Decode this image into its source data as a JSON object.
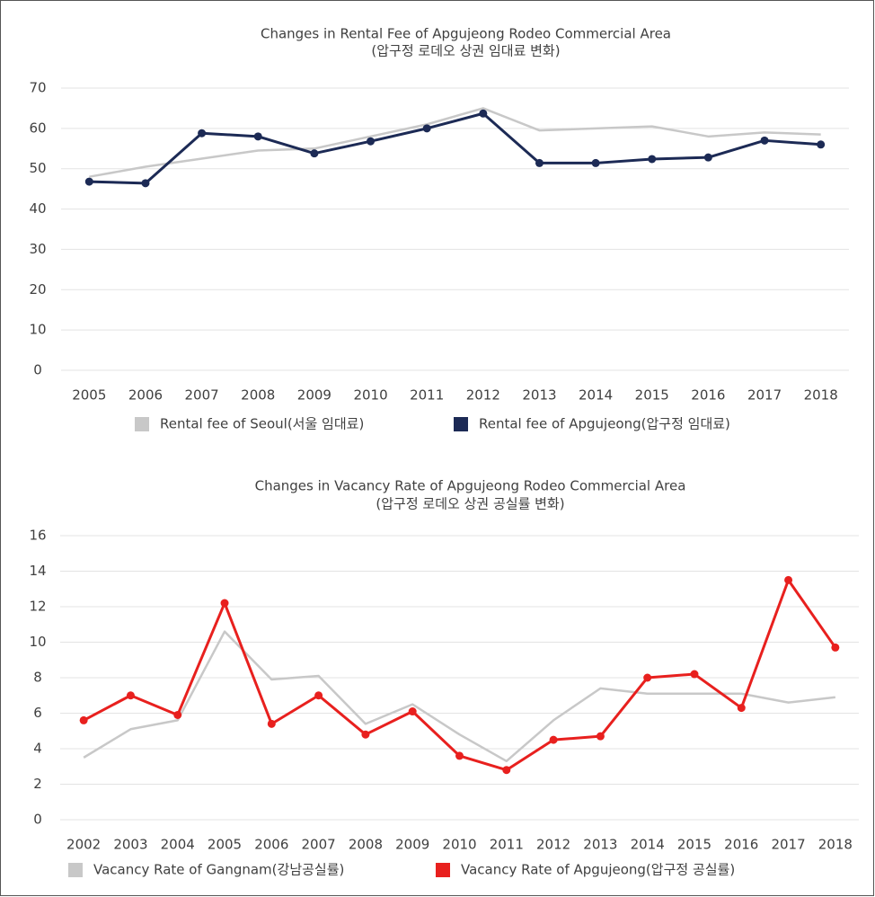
{
  "chart_data": [
    {
      "type": "line",
      "title": "Changes in Rental Fee of Apgujeong Rodeo Commercial Area",
      "subtitle": "(압구정 로데오 상권 임대료 변화)",
      "categories": [
        "2005",
        "2006",
        "2007",
        "2008",
        "2009",
        "2010",
        "2011",
        "2012",
        "2013",
        "2014",
        "2015",
        "2016",
        "2017",
        "2018"
      ],
      "series": [
        {
          "name": "Rental fee of Seoul(서울 임대료)",
          "color": "#c8c8c8",
          "markers": false,
          "values": [
            48,
            50.5,
            52.5,
            54.5,
            55,
            58,
            61,
            65,
            59.5,
            60,
            60.5,
            58,
            59,
            58.5
          ]
        },
        {
          "name": "Rental fee of Apgujeong(압구정 임대료)",
          "color": "#1c2a55",
          "markers": true,
          "values": [
            46.8,
            46.4,
            58.8,
            58,
            53.8,
            56.8,
            60,
            63.7,
            51.4,
            51.4,
            52.4,
            52.8,
            57,
            56
          ]
        }
      ],
      "ylim": [
        0,
        70
      ],
      "yticks": [
        0,
        10,
        20,
        30,
        40,
        50,
        60,
        70
      ],
      "grid": true,
      "legend": "bottom"
    },
    {
      "type": "line",
      "title": "Changes in Vacancy Rate of Apgujeong Rodeo Commercial Area",
      "subtitle": "(압구정 로데오 상권 공실률 변화)",
      "categories": [
        "2002",
        "2003",
        "2004",
        "2005",
        "2006",
        "2007",
        "2008",
        "2009",
        "2010",
        "2011",
        "2012",
        "2013",
        "2014",
        "2015",
        "2016",
        "2017",
        "2018"
      ],
      "series": [
        {
          "name": "Vacancy Rate of Gangnam(강남공실률)",
          "color": "#c8c8c8",
          "markers": false,
          "values": [
            3.5,
            5.1,
            5.6,
            10.6,
            7.9,
            8.1,
            5.4,
            6.5,
            4.8,
            3.3,
            5.6,
            7.4,
            7.1,
            7.1,
            7.1,
            6.6,
            6.9
          ]
        },
        {
          "name": "Vacancy Rate of Apgujeong(압구정 공실률)",
          "color": "#e8201e",
          "markers": true,
          "values": [
            5.6,
            7.0,
            5.9,
            12.2,
            5.4,
            7.0,
            4.8,
            6.1,
            3.6,
            2.8,
            4.5,
            4.7,
            8.0,
            8.2,
            6.3,
            13.5,
            9.7
          ]
        }
      ],
      "ylim": [
        0,
        16
      ],
      "yticks": [
        0,
        2,
        4,
        6,
        8,
        10,
        12,
        14,
        16
      ],
      "grid": true,
      "legend": "bottom"
    }
  ]
}
